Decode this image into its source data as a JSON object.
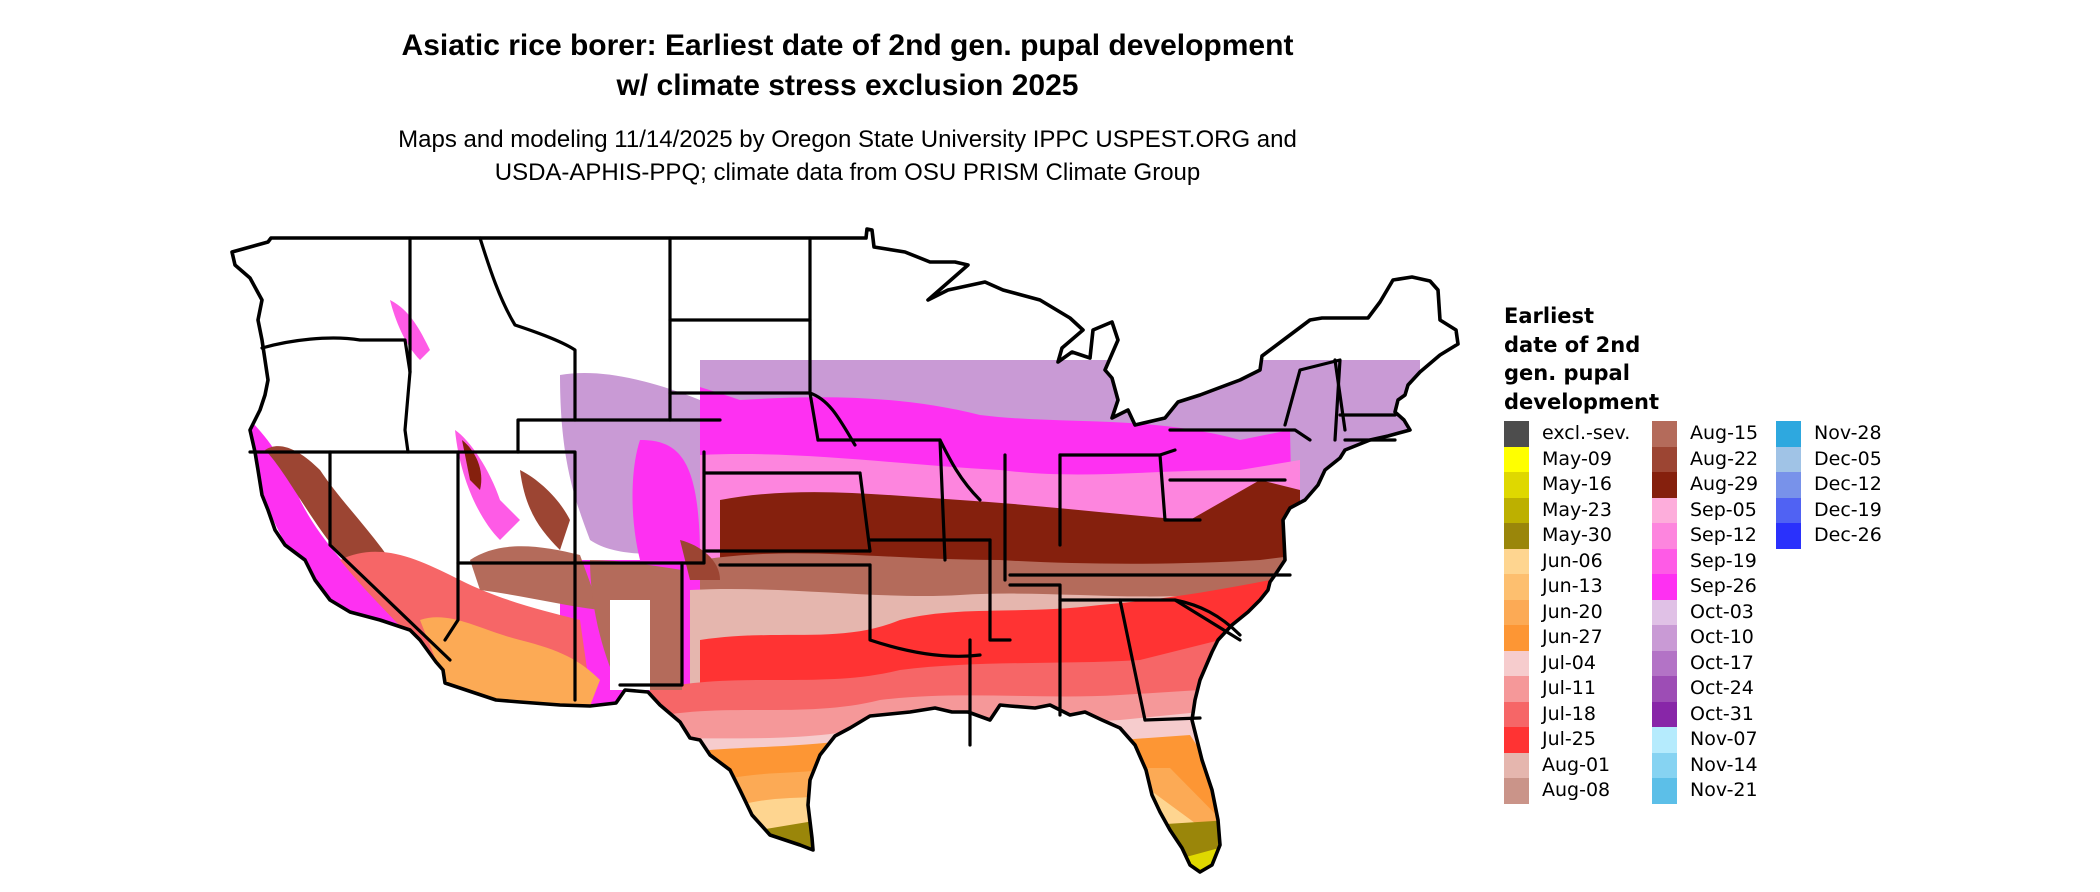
{
  "header": {
    "title_line1": "Asiatic rice borer: Earliest date of 2nd gen. pupal development",
    "title_line2": "w/ climate stress exclusion 2025",
    "subtitle_line1": "Maps and modeling 11/14/2025 by Oregon State University IPPC USPEST.ORG and",
    "subtitle_line2": "USDA-APHIS-PPQ; climate data from OSU PRISM Climate Group"
  },
  "legend": {
    "title_lines": [
      "Earliest",
      "date of 2nd",
      "gen. pupal",
      "development"
    ],
    "columns": [
      [
        {
          "label": "excl.-sev.",
          "color": "#4d4d4d"
        },
        {
          "label": "May-09",
          "color": "#ffff00"
        },
        {
          "label": "May-16",
          "color": "#dfd800"
        },
        {
          "label": "May-23",
          "color": "#bdb000"
        },
        {
          "label": "May-30",
          "color": "#9a860a"
        },
        {
          "label": "Jun-06",
          "color": "#fed590"
        },
        {
          "label": "Jun-13",
          "color": "#fdbf6f"
        },
        {
          "label": "Jun-20",
          "color": "#fcaa55"
        },
        {
          "label": "Jun-27",
          "color": "#fd9634"
        },
        {
          "label": "Jul-04",
          "color": "#f6cccd"
        },
        {
          "label": "Jul-11",
          "color": "#f59899"
        },
        {
          "label": "Jul-18",
          "color": "#f66667"
        },
        {
          "label": "Jul-25",
          "color": "#ff3333"
        },
        {
          "label": "Aug-01",
          "color": "#e5b6ae"
        },
        {
          "label": "Aug-08",
          "color": "#ca9489"
        }
      ],
      [
        {
          "label": "Aug-15",
          "color": "#b46b5b"
        },
        {
          "label": "Aug-22",
          "color": "#9c4533"
        },
        {
          "label": "Aug-29",
          "color": "#85200d"
        },
        {
          "label": "Sep-05",
          "color": "#fdaddb"
        },
        {
          "label": "Sep-12",
          "color": "#fd85de"
        },
        {
          "label": "Sep-19",
          "color": "#fe5be6"
        },
        {
          "label": "Sep-26",
          "color": "#fe30f2"
        },
        {
          "label": "Oct-03",
          "color": "#e0c1e6"
        },
        {
          "label": "Oct-10",
          "color": "#c99ad5"
        },
        {
          "label": "Oct-17",
          "color": "#b373c6"
        },
        {
          "label": "Oct-24",
          "color": "#9d4db5"
        },
        {
          "label": "Oct-31",
          "color": "#8826a8"
        },
        {
          "label": "Nov-07",
          "color": "#b5ebfd"
        },
        {
          "label": "Nov-14",
          "color": "#86d3f2"
        },
        {
          "label": "Nov-21",
          "color": "#5cbfe8"
        }
      ],
      [
        {
          "label": "Nov-28",
          "color": "#2ea8df"
        },
        {
          "label": "Dec-05",
          "color": "#a0c3e6"
        },
        {
          "label": "Dec-12",
          "color": "#7892ea"
        },
        {
          "label": "Dec-19",
          "color": "#5062f3"
        },
        {
          "label": "Dec-26",
          "color": "#2a31fc"
        }
      ]
    ]
  },
  "map": {
    "outline_color": "#000000",
    "no_data_color": "#ffffff"
  }
}
